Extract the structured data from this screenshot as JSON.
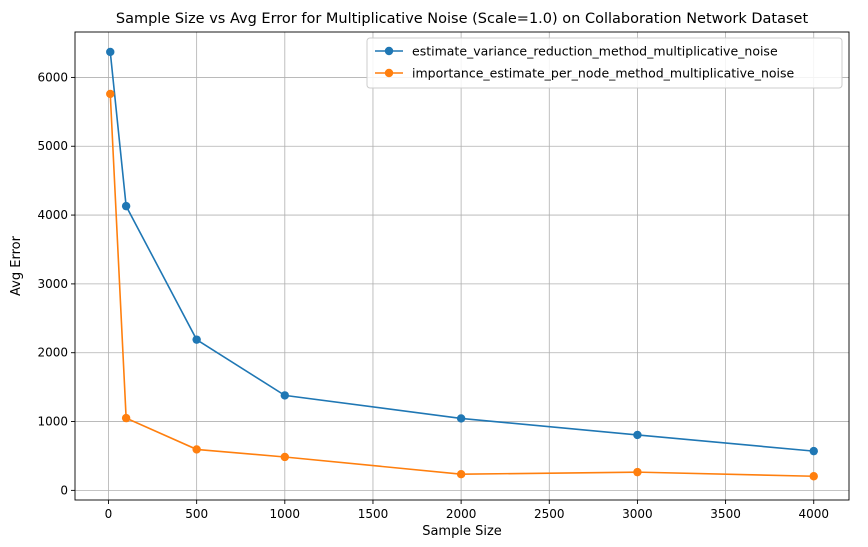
{
  "chart_data": {
    "type": "line",
    "title": "Sample Size vs Avg Error for Multiplicative Noise (Scale=1.0) on Collaboration Network Dataset",
    "xlabel": "Sample Size",
    "ylabel": "Avg Error",
    "x": [
      10,
      100,
      500,
      1000,
      2000,
      3000,
      4000
    ],
    "xlim": [
      -190,
      4200
    ],
    "ylim": [
      -140,
      6660
    ],
    "xticks": [
      0,
      500,
      1000,
      1500,
      2000,
      2500,
      3000,
      3500,
      4000
    ],
    "yticks": [
      0,
      1000,
      2000,
      3000,
      4000,
      5000,
      6000
    ],
    "grid": true,
    "legend_position": "upper right",
    "series": [
      {
        "name": "estimate_variance_reduction_method_multiplicative_noise",
        "color": "#1f77b4",
        "values": [
          6370,
          4130,
          2190,
          1380,
          1045,
          805,
          570
        ]
      },
      {
        "name": "importance_estimate_per_node_method_multiplicative_noise",
        "color": "#ff7f0e",
        "values": [
          5760,
          1050,
          595,
          485,
          235,
          265,
          205
        ]
      }
    ]
  }
}
